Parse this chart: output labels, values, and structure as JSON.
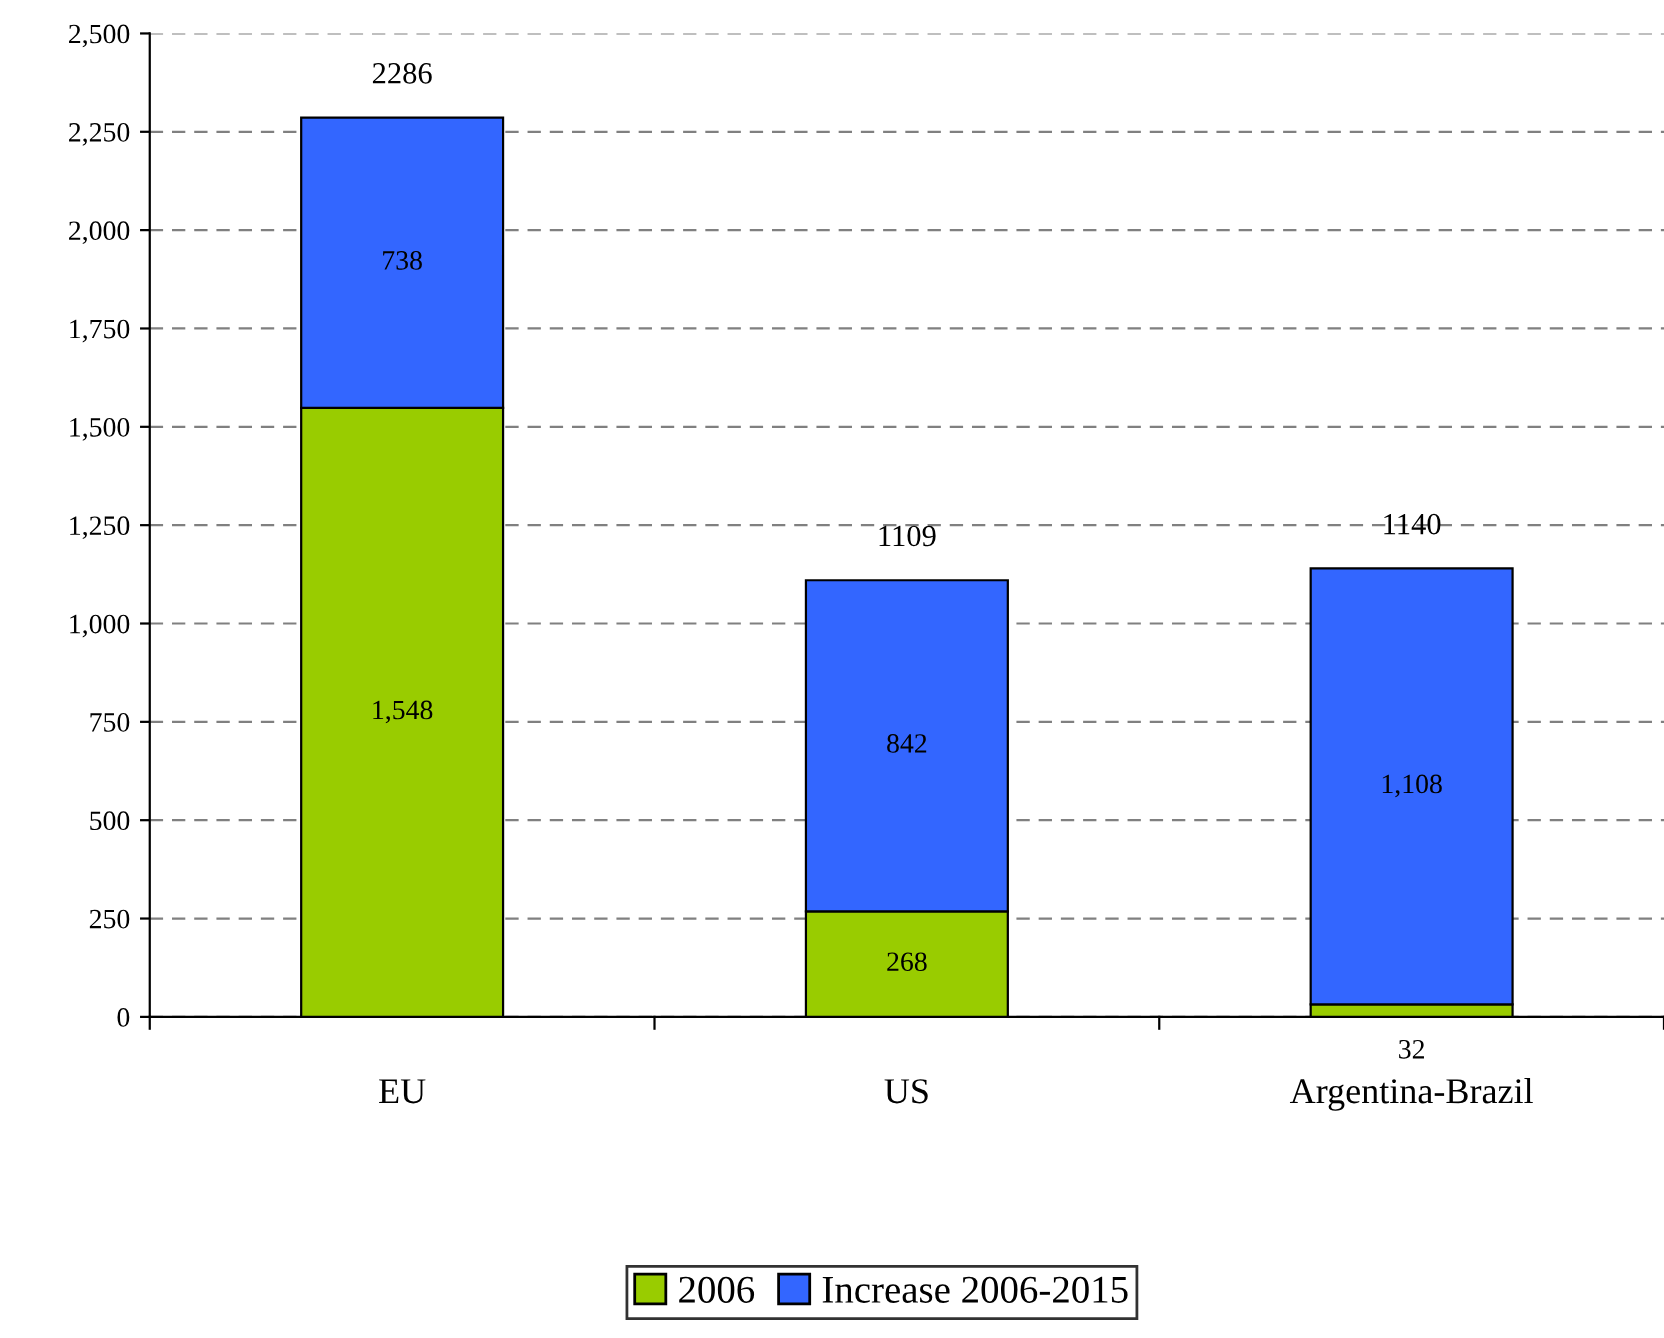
{
  "chart_data": {
    "type": "bar",
    "stacked": true,
    "categories": [
      "EU",
      "US",
      "Argentina-Brazil"
    ],
    "series": [
      {
        "name": "2006",
        "color": "#99cc00",
        "values": [
          1548,
          268,
          32
        ],
        "value_labels": [
          "1,548",
          "268",
          "32"
        ]
      },
      {
        "name": "Increase 2006-2015",
        "color": "#3366ff",
        "values": [
          738,
          842,
          1108
        ],
        "value_labels": [
          "738",
          "842",
          "1,108"
        ]
      }
    ],
    "totals": [
      "2286",
      "1109",
      "1140"
    ],
    "ylim": [
      0,
      2500
    ],
    "yticks": [
      0,
      250,
      500,
      750,
      {
        "value": 1000,
        "label": "1,000"
      },
      {
        "value": 1250,
        "label": "1,250"
      },
      {
        "value": 1500,
        "label": "1,500"
      },
      {
        "value": 1750,
        "label": "1,750"
      },
      {
        "value": 2000,
        "label": "2,000"
      },
      {
        "value": 2250,
        "label": "2,250"
      },
      {
        "value": 2500,
        "label": "2,500"
      }
    ],
    "grid": "y",
    "legend": "bottom"
  }
}
